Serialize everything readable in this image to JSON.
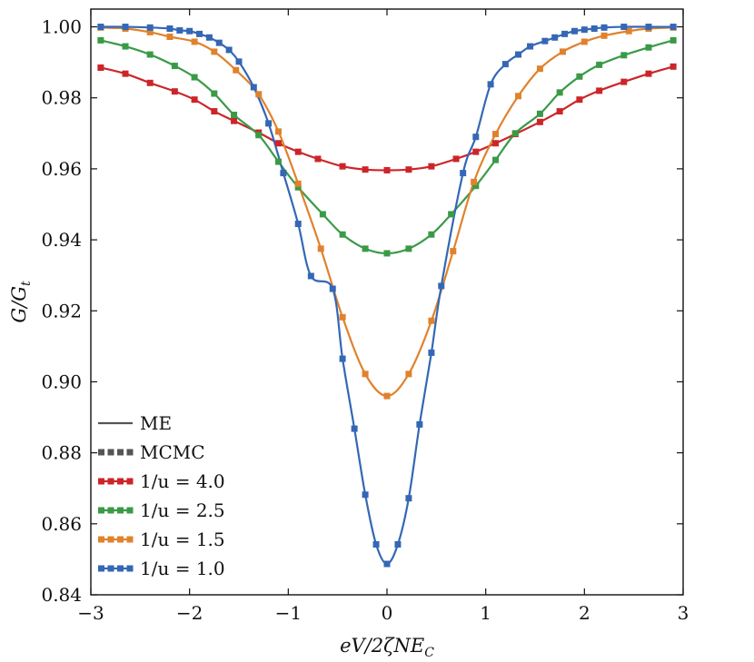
{
  "chart_data": {
    "type": "line",
    "title": "",
    "xlabel": "eV/2ζNE_C",
    "ylabel": "G/G_t",
    "xlabel_display": "eV/2ζNE",
    "xlabel_sub": "C",
    "ylabel_display": "G/G",
    "ylabel_sub": "t",
    "xlim": [
      -3,
      3
    ],
    "ylim": [
      0.84,
      1.005
    ],
    "xticks": [
      -3,
      -2,
      -1,
      0,
      1,
      2,
      3
    ],
    "xtick_labels": [
      "−3",
      "−2",
      "−1",
      "0",
      "1",
      "2",
      "3"
    ],
    "yticks": [
      0.84,
      0.86,
      0.88,
      0.9,
      0.92,
      0.94,
      0.96,
      0.98,
      1.0
    ],
    "ytick_labels": [
      "0.84",
      "0.86",
      "0.88",
      "0.90",
      "0.92",
      "0.94",
      "0.96",
      "0.98",
      "1.00"
    ],
    "legend_position": "lower-left",
    "legend": [
      {
        "label": "ME",
        "style": "solid",
        "color": "#555555"
      },
      {
        "label": "MCMC",
        "style": "dotted",
        "color": "#555555"
      },
      {
        "label": "1/u = 4.0",
        "style": "line-marker",
        "color": "#cc2529"
      },
      {
        "label": "1/u = 2.5",
        "style": "line-marker",
        "color": "#3a9a47"
      },
      {
        "label": "1/u = 1.5",
        "style": "line-marker",
        "color": "#e0822d"
      },
      {
        "label": "1/u = 1.0",
        "style": "line-marker",
        "color": "#3467b5"
      }
    ],
    "series": [
      {
        "name": "1/u = 4.0",
        "color": "#cc2529",
        "x": [
          -2.9,
          -2.65,
          -2.4,
          -2.15,
          -1.95,
          -1.75,
          -1.55,
          -1.3,
          -1.1,
          -0.9,
          -0.7,
          -0.45,
          -0.22,
          0.0,
          0.22,
          0.45,
          0.7,
          0.9,
          1.1,
          1.3,
          1.55,
          1.75,
          1.95,
          2.15,
          2.4,
          2.65,
          2.9
        ],
        "y": [
          0.9885,
          0.9868,
          0.9842,
          0.9818,
          0.9795,
          0.9762,
          0.9735,
          0.9702,
          0.9672,
          0.9648,
          0.9628,
          0.9607,
          0.9598,
          0.9596,
          0.9598,
          0.9607,
          0.9628,
          0.9648,
          0.9672,
          0.9698,
          0.9732,
          0.9762,
          0.9795,
          0.982,
          0.9845,
          0.9868,
          0.9888
        ]
      },
      {
        "name": "1/u = 2.5",
        "color": "#3a9a47",
        "x": [
          -2.9,
          -2.65,
          -2.4,
          -2.15,
          -1.95,
          -1.75,
          -1.55,
          -1.3,
          -1.1,
          -0.9,
          -0.65,
          -0.45,
          -0.22,
          0.0,
          0.22,
          0.45,
          0.65,
          0.9,
          1.1,
          1.3,
          1.55,
          1.75,
          1.95,
          2.15,
          2.4,
          2.65,
          2.9
        ],
        "y": [
          0.9962,
          0.9945,
          0.9922,
          0.989,
          0.9858,
          0.9812,
          0.9752,
          0.9695,
          0.962,
          0.9548,
          0.9472,
          0.9415,
          0.9375,
          0.9362,
          0.9375,
          0.9415,
          0.9472,
          0.9552,
          0.9625,
          0.97,
          0.9755,
          0.9815,
          0.986,
          0.9893,
          0.992,
          0.9942,
          0.9962
        ]
      },
      {
        "name": "1/u = 1.5",
        "color": "#e0822d",
        "x": [
          -2.9,
          -2.65,
          -2.4,
          -2.2,
          -1.95,
          -1.75,
          -1.53,
          -1.3,
          -1.1,
          -0.9,
          -0.67,
          -0.45,
          -0.22,
          0.0,
          0.22,
          0.45,
          0.67,
          0.88,
          1.1,
          1.33,
          1.55,
          1.78,
          2.0,
          2.2,
          2.45,
          2.65,
          2.9
        ],
        "y": [
          0.9998,
          0.9995,
          0.9985,
          0.9972,
          0.9958,
          0.993,
          0.9878,
          0.981,
          0.9705,
          0.9558,
          0.9375,
          0.9182,
          0.9022,
          0.896,
          0.9022,
          0.9172,
          0.9368,
          0.9563,
          0.9698,
          0.9805,
          0.9882,
          0.993,
          0.9958,
          0.9975,
          0.9988,
          0.9995,
          0.9998
        ]
      },
      {
        "name": "1/u = 1.0",
        "color": "#3467b5",
        "x": [
          -2.9,
          -2.65,
          -2.4,
          -2.2,
          -2.1,
          -2.0,
          -1.9,
          -1.8,
          -1.7,
          -1.6,
          -1.5,
          -1.35,
          -1.2,
          -1.05,
          -0.9,
          -0.77,
          -0.55,
          -0.45,
          -0.33,
          -0.22,
          -0.11,
          0.0,
          0.11,
          0.22,
          0.33,
          0.45,
          0.55,
          0.77,
          0.9,
          1.05,
          1.2,
          1.33,
          1.45,
          1.6,
          1.7,
          1.8,
          1.9,
          2.0,
          2.1,
          2.2,
          2.4,
          2.65,
          2.9
        ],
        "y": [
          1.0,
          1.0,
          0.9998,
          0.9995,
          0.999,
          0.9988,
          0.998,
          0.997,
          0.9955,
          0.9935,
          0.9902,
          0.983,
          0.9728,
          0.9588,
          0.9445,
          0.9298,
          0.9262,
          0.9065,
          0.8868,
          0.8682,
          0.8542,
          0.8487,
          0.8542,
          0.8672,
          0.888,
          0.9082,
          0.927,
          0.9588,
          0.969,
          0.9838,
          0.9895,
          0.9922,
          0.9945,
          0.996,
          0.997,
          0.998,
          0.9988,
          0.9992,
          0.9995,
          0.9998,
          1.0,
          1.0,
          1.0
        ]
      }
    ]
  }
}
